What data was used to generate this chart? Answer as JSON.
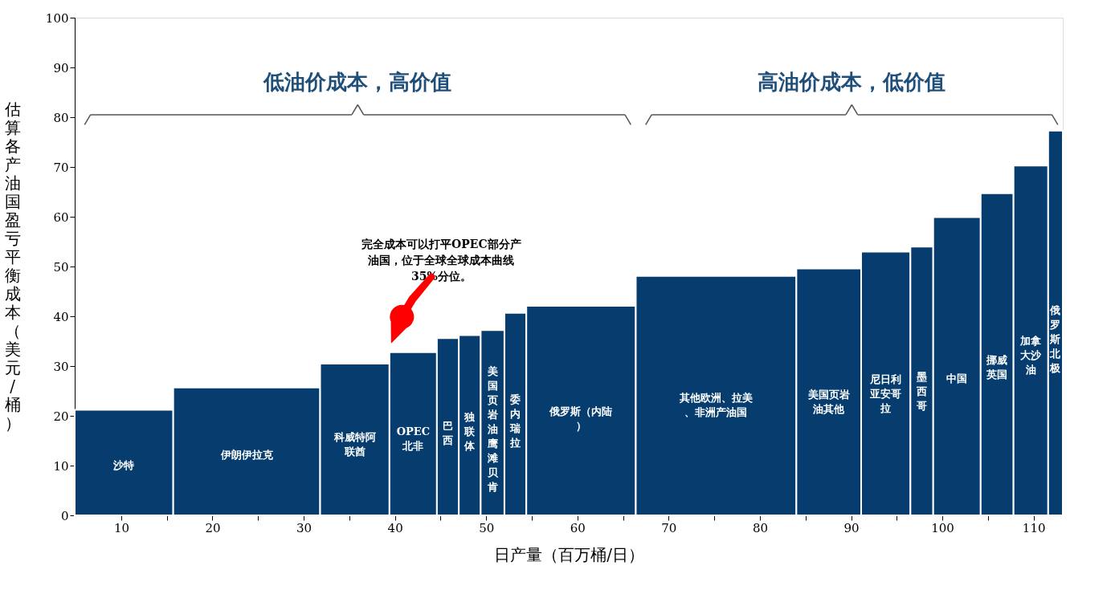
{
  "chart_data": {
    "type": "histogram",
    "xlabel": "日产量（百万桶/日）",
    "ylabel": "估算各产油国盈亏平衡成本（美元/桶）",
    "bins": [
      4.9,
      15.7,
      31.8,
      39.4,
      44.6,
      47.0,
      49.4,
      52.0,
      54.4,
      66.4,
      84.0,
      91.1,
      96.5,
      99.0,
      104.2,
      107.8,
      111.6,
      113.2
    ],
    "values": [
      21.2,
      25.7,
      30.5,
      32.8,
      35.6,
      36.2,
      37.2,
      40.7,
      42.1,
      48.1,
      49.6,
      53.0,
      54.0,
      59.9,
      64.7,
      70.3,
      77.3
    ],
    "color": "#063d6e",
    "xlim": [
      4.9,
      113.2
    ],
    "xticks": [
      10,
      {
        "value": 15,
        "label": null
      },
      20,
      {
        "value": 25,
        "label": null
      },
      30,
      {
        "value": 35,
        "label": null
      },
      40,
      {
        "value": 45,
        "label": null
      },
      50,
      {
        "value": 55,
        "label": null
      },
      60,
      {
        "value": 65,
        "label": null
      },
      70,
      {
        "value": 75,
        "label": null
      },
      80,
      {
        "value": 85,
        "label": null
      },
      90,
      {
        "value": 95,
        "label": null
      },
      100,
      {
        "value": 105,
        "label": null
      },
      110
    ],
    "ylim": [
      0,
      100
    ],
    "yticks": [
      0,
      10,
      20,
      30,
      40,
      50,
      60,
      70,
      80,
      90,
      100
    ],
    "grid": false,
    "annotations": [
      "低油价成本，高价值",
      "高油价成本，低价值",
      "完全成本可以打平OPEC部分产油国，位于全球全球成本曲线35%分位。",
      "沙特",
      "伊朗伊拉克",
      "科威特阿联酋",
      "OPEC北非",
      "巴西",
      "独联体",
      "美国页岩油鹰滩贝肯",
      "委内瑞拉",
      "俄罗斯（内陆）",
      "其他欧洲、拉美、非洲产油国",
      "美国页岩油其他",
      "尼日利亚安哥拉",
      "墨西哥",
      "中国",
      "挪威英国",
      "加拿大沙油",
      "俄罗斯北极"
    ]
  }
}
